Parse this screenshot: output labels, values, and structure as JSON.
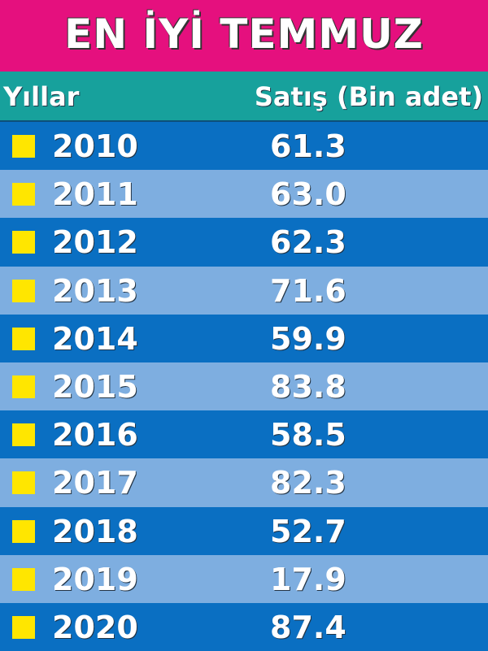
{
  "header": {
    "title": "EN İYİ TEMMUZ"
  },
  "table": {
    "columns": [
      "Yıllar",
      "Satış (Bin adet)"
    ],
    "rows": [
      [
        "2010",
        "61.3"
      ],
      [
        "2011",
        "63.0"
      ],
      [
        "2012",
        "62.3"
      ],
      [
        "2013",
        "71.6"
      ],
      [
        "2014",
        "59.9"
      ],
      [
        "2015",
        "83.8"
      ],
      [
        "2016",
        "58.5"
      ],
      [
        "2017",
        "82.3"
      ],
      [
        "2018",
        "52.7"
      ],
      [
        "2019",
        "17.9"
      ],
      [
        "2020",
        "87.4"
      ]
    ]
  }
}
